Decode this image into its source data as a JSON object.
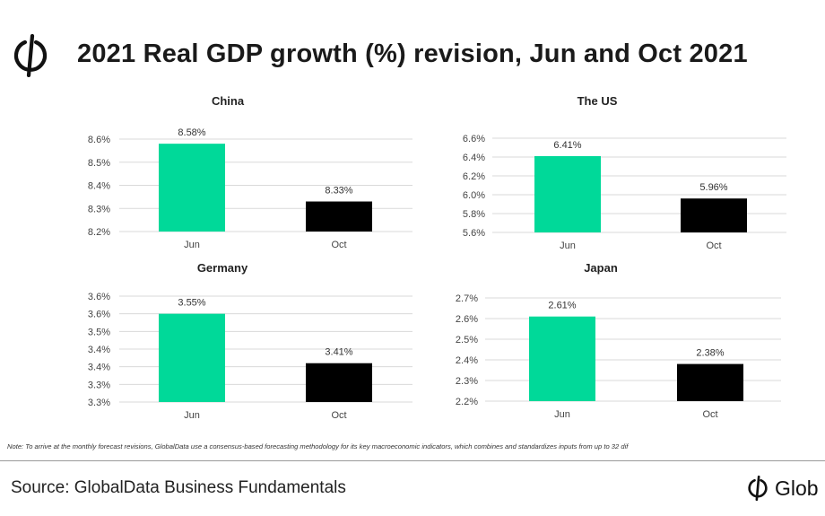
{
  "title": "2021 Real GDP growth (%) revision, Jun and Oct 2021",
  "note": "Note: To arrive at the monthly forecast revisions, GlobalData use a consensus-based forecasting methodology for its key macroeconomic indicators, which combines and standardizes inputs from up to 32 dif",
  "source": "Source: GlobalData Business Fundamentals",
  "brand_text": "Glob",
  "colors": {
    "jun": "#00d999",
    "oct": "#000000",
    "grid": "#d9d9d9"
  },
  "chart_data": [
    {
      "type": "bar",
      "title": "China",
      "categories": [
        "Jun",
        "Oct"
      ],
      "values": [
        8.58,
        8.33
      ],
      "value_labels": [
        "8.58%",
        "8.33%"
      ],
      "ylim": [
        8.2,
        8.6
      ],
      "ticks": [
        8.2,
        8.3,
        8.4,
        8.5,
        8.6
      ],
      "tick_labels": [
        "8.2%",
        "8.3%",
        "8.4%",
        "8.5%",
        "8.6%"
      ]
    },
    {
      "type": "bar",
      "title": "The US",
      "categories": [
        "Jun",
        "Oct"
      ],
      "values": [
        6.41,
        5.96
      ],
      "value_labels": [
        "6.41%",
        "5.96%"
      ],
      "ylim": [
        5.6,
        6.6
      ],
      "ticks": [
        5.6,
        5.8,
        6.0,
        6.2,
        6.4,
        6.6
      ],
      "tick_labels": [
        "5.6%",
        "5.8%",
        "6.0%",
        "6.2%",
        "6.4%",
        "6.6%"
      ]
    },
    {
      "type": "bar",
      "title": "Germany",
      "categories": [
        "Jun",
        "Oct"
      ],
      "values": [
        3.55,
        3.41
      ],
      "value_labels": [
        "3.55%",
        "3.41%"
      ],
      "ylim": [
        3.3,
        3.6
      ],
      "ticks": [
        3.3,
        3.35,
        3.4,
        3.45,
        3.5,
        3.55,
        3.6
      ],
      "tick_labels": [
        "3.3%",
        "3.3%",
        "3.4%",
        "3.4%",
        "3.5%",
        "3.6%",
        "3.6%"
      ]
    },
    {
      "type": "bar",
      "title": "Japan",
      "categories": [
        "Jun",
        "Oct"
      ],
      "values": [
        2.61,
        2.38
      ],
      "value_labels": [
        "2.61%",
        "2.38%"
      ],
      "ylim": [
        2.2,
        2.7
      ],
      "ticks": [
        2.2,
        2.3,
        2.4,
        2.5,
        2.6,
        2.7
      ],
      "tick_labels": [
        "2.2%",
        "2.3%",
        "2.4%",
        "2.5%",
        "2.6%",
        "2.7%"
      ]
    }
  ]
}
